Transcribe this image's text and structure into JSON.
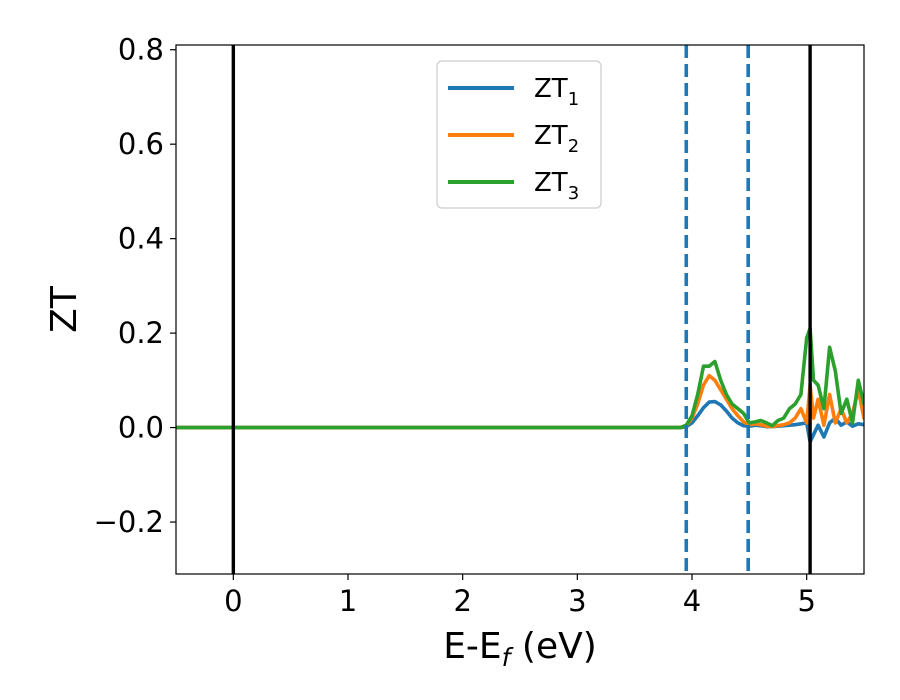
{
  "chart_data": {
    "type": "line",
    "title": "",
    "xlabel": {
      "main": "E-E",
      "sub": "f",
      "suffix": " (eV)"
    },
    "ylabel": "ZT",
    "xlim": [
      -0.5,
      5.5
    ],
    "ylim": [
      -0.31,
      0.81
    ],
    "xticks": [
      0,
      1,
      2,
      3,
      4,
      5
    ],
    "xtick_labels": [
      "0",
      "1",
      "2",
      "3",
      "4",
      "5"
    ],
    "yticks": [
      -0.2,
      0.0,
      0.2,
      0.4,
      0.6,
      0.8
    ],
    "ytick_labels": [
      "−0.2",
      "0.0",
      "0.2",
      "0.4",
      "0.6",
      "0.8"
    ],
    "grid": false,
    "legend_position": "top-center",
    "vlines": [
      {
        "x": 0.0,
        "style": "solid",
        "color": "#000000"
      },
      {
        "x": 5.03,
        "style": "solid",
        "color": "#000000"
      },
      {
        "x": 3.95,
        "style": "dashed",
        "color": "#1f77b4"
      },
      {
        "x": 4.49,
        "style": "dashed",
        "color": "#1f77b4"
      }
    ],
    "series": [
      {
        "name": "ZT",
        "sub": "1",
        "color": "#1f77b4",
        "x": [
          -0.5,
          3.9,
          3.95,
          4.0,
          4.05,
          4.1,
          4.15,
          4.2,
          4.25,
          4.3,
          4.35,
          4.4,
          4.45,
          4.5,
          4.55,
          4.6,
          4.65,
          4.7,
          4.75,
          4.8,
          4.85,
          4.9,
          4.95,
          5.0,
          5.03,
          5.06,
          5.1,
          5.15,
          5.2,
          5.25,
          5.3,
          5.35,
          5.4,
          5.45,
          5.5
        ],
        "y": [
          0.0,
          0.0,
          0.002,
          0.01,
          0.025,
          0.042,
          0.054,
          0.055,
          0.048,
          0.035,
          0.02,
          0.01,
          0.004,
          0.003,
          0.005,
          0.004,
          0.002,
          0.002,
          0.003,
          0.004,
          0.005,
          0.006,
          0.008,
          0.01,
          -0.03,
          -0.015,
          0.005,
          -0.02,
          0.01,
          0.02,
          0.005,
          0.012,
          0.003,
          0.008,
          0.006
        ]
      },
      {
        "name": "ZT",
        "sub": "2",
        "color": "#ff7f0e",
        "x": [
          -0.5,
          3.9,
          3.95,
          4.0,
          4.05,
          4.1,
          4.15,
          4.2,
          4.25,
          4.3,
          4.35,
          4.4,
          4.45,
          4.5,
          4.55,
          4.6,
          4.65,
          4.7,
          4.75,
          4.8,
          4.85,
          4.9,
          4.95,
          5.0,
          5.03,
          5.06,
          5.1,
          5.15,
          5.2,
          5.25,
          5.3,
          5.35,
          5.4,
          5.45,
          5.5
        ],
        "y": [
          0.0,
          0.0,
          0.004,
          0.02,
          0.05,
          0.09,
          0.11,
          0.1,
          0.08,
          0.06,
          0.04,
          0.025,
          0.012,
          0.006,
          0.008,
          0.006,
          0.003,
          0.002,
          0.004,
          0.006,
          0.01,
          0.02,
          0.04,
          0.01,
          0.09,
          0.02,
          0.06,
          0.005,
          0.07,
          0.01,
          0.04,
          0.01,
          0.03,
          0.08,
          0.02
        ]
      },
      {
        "name": "ZT",
        "sub": "3",
        "color": "#2ca02c",
        "x": [
          -0.5,
          3.9,
          3.95,
          4.0,
          4.05,
          4.1,
          4.15,
          4.2,
          4.25,
          4.3,
          4.35,
          4.4,
          4.45,
          4.5,
          4.55,
          4.6,
          4.65,
          4.7,
          4.75,
          4.8,
          4.85,
          4.9,
          4.95,
          5.0,
          5.03,
          5.06,
          5.1,
          5.15,
          5.2,
          5.25,
          5.3,
          5.35,
          5.4,
          5.45,
          5.5
        ],
        "y": [
          0.0,
          0.0,
          0.005,
          0.025,
          0.07,
          0.13,
          0.13,
          0.14,
          0.1,
          0.07,
          0.05,
          0.04,
          0.03,
          0.01,
          0.012,
          0.015,
          0.01,
          0.004,
          0.015,
          0.02,
          0.04,
          0.05,
          0.07,
          0.19,
          0.21,
          0.1,
          0.09,
          0.04,
          0.17,
          0.12,
          0.03,
          0.06,
          0.01,
          0.1,
          0.05
        ]
      }
    ]
  }
}
